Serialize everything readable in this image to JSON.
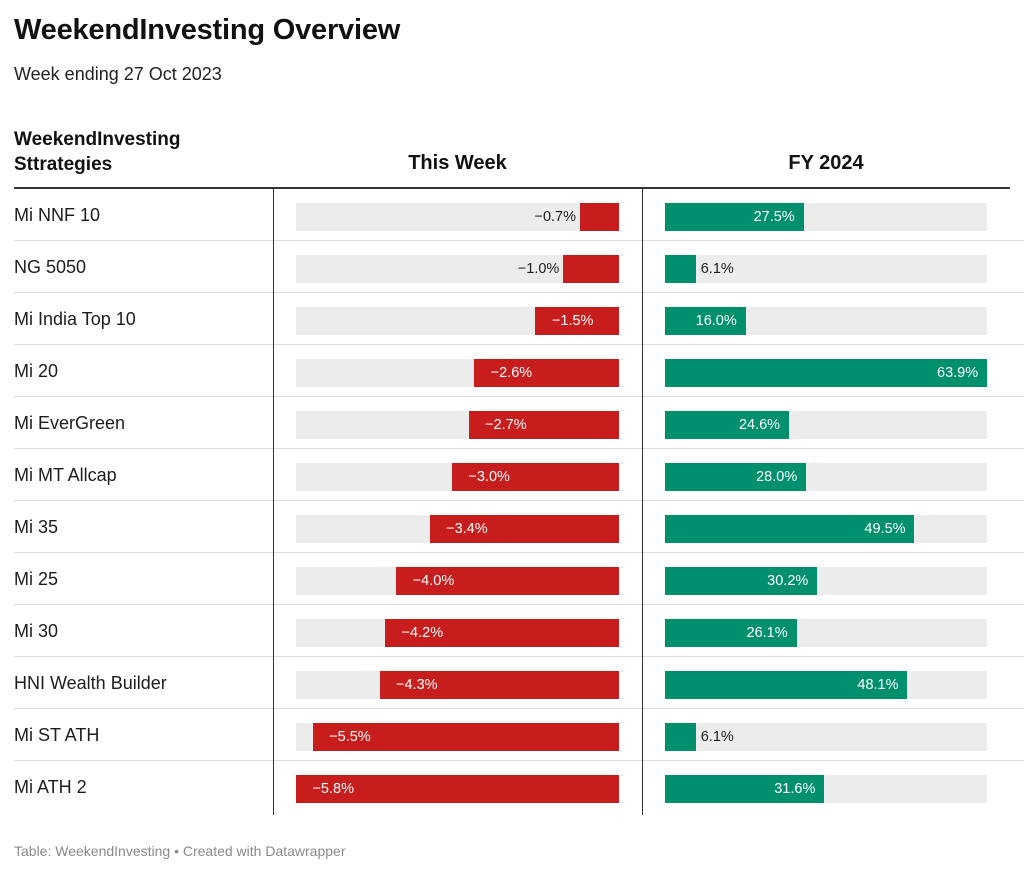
{
  "title": "WeekendInvesting Overview",
  "subtitle": "Week ending 27 Oct 2023",
  "footer": "Table: WeekendInvesting • Created with Datawrapper",
  "colors": {
    "negative": "#c71e1d",
    "positive": "#00906e",
    "track": "#ececec"
  },
  "chart_data": {
    "type": "table",
    "columns": [
      {
        "label": "WeekendInvesting Sttrategies"
      },
      {
        "label": "This Week",
        "range": [
          -5.8,
          0
        ]
      },
      {
        "label": "FY 2024",
        "range": [
          0,
          63.9
        ]
      }
    ],
    "rows": [
      {
        "name": "Mi NNF 10",
        "week": -0.7,
        "fy": 27.5,
        "week_label": "−0.7%",
        "fy_label": "27.5%"
      },
      {
        "name": "NG 5050",
        "week": -1.0,
        "fy": 6.1,
        "week_label": "−1.0%",
        "fy_label": "6.1%"
      },
      {
        "name": "Mi India Top 10",
        "week": -1.5,
        "fy": 16.0,
        "week_label": "−1.5%",
        "fy_label": "16.0%"
      },
      {
        "name": "Mi 20",
        "week": -2.6,
        "fy": 63.9,
        "week_label": "−2.6%",
        "fy_label": "63.9%"
      },
      {
        "name": "Mi EverGreen",
        "week": -2.7,
        "fy": 24.6,
        "week_label": "−2.7%",
        "fy_label": "24.6%"
      },
      {
        "name": "Mi MT Allcap",
        "week": -3.0,
        "fy": 28.0,
        "week_label": "−3.0%",
        "fy_label": "28.0%"
      },
      {
        "name": "Mi 35",
        "week": -3.4,
        "fy": 49.5,
        "week_label": "−3.4%",
        "fy_label": "49.5%"
      },
      {
        "name": "Mi 25",
        "week": -4.0,
        "fy": 30.2,
        "week_label": "−4.0%",
        "fy_label": "30.2%"
      },
      {
        "name": "Mi 30",
        "week": -4.2,
        "fy": 26.1,
        "week_label": "−4.2%",
        "fy_label": "26.1%"
      },
      {
        "name": "HNI Wealth Builder",
        "week": -4.3,
        "fy": 48.1,
        "week_label": "−4.3%",
        "fy_label": "48.1%"
      },
      {
        "name": "Mi ST ATH",
        "week": -5.5,
        "fy": 6.1,
        "week_label": "−5.5%",
        "fy_label": "6.1%"
      },
      {
        "name": "Mi ATH 2",
        "week": -5.8,
        "fy": 31.6,
        "week_label": "−5.8%",
        "fy_label": "31.6%"
      }
    ]
  }
}
